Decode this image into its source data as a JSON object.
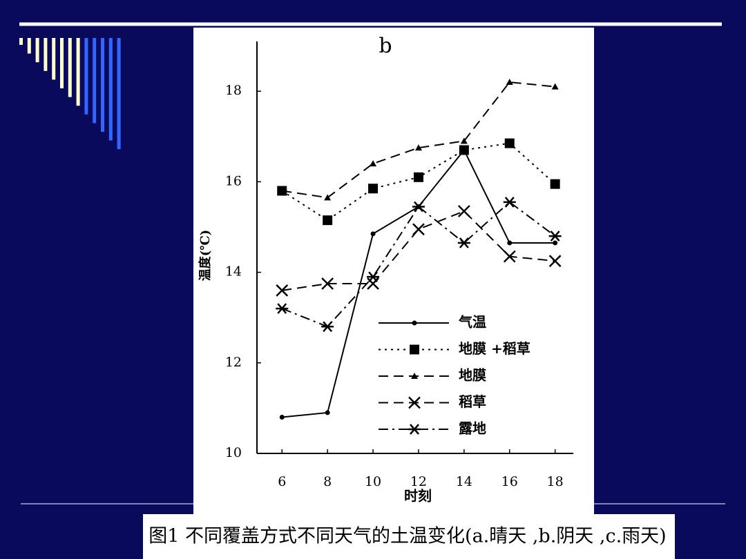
{
  "chart_data": {
    "type": "line",
    "title": "b",
    "ylabel": "温度(℃)",
    "xlabel": "时刻",
    "x": [
      6,
      8,
      10,
      12,
      14,
      16,
      18
    ],
    "xlim": [
      4.9,
      18.8
    ],
    "xticks": [
      6,
      8,
      10,
      12,
      14,
      16,
      18
    ],
    "ylim": [
      10,
      19.1
    ],
    "yticks": [
      10,
      12,
      14,
      16,
      18
    ],
    "series": [
      {
        "name": "气温",
        "color": "#000000",
        "marker": "dot",
        "line_style": "solid",
        "values": [
          10.8,
          10.9,
          14.85,
          15.45,
          16.7,
          14.65,
          14.65
        ]
      },
      {
        "name": "地膜 +稻草",
        "color": "#000000",
        "marker": "square",
        "line_style": "dotted",
        "values": [
          15.8,
          15.15,
          15.85,
          16.1,
          16.7,
          16.85,
          15.95
        ]
      },
      {
        "name": "地膜",
        "color": "#000000",
        "marker": "triangle",
        "line_style": "dashed",
        "values": [
          15.8,
          15.65,
          16.4,
          16.75,
          16.9,
          18.2,
          18.1
        ]
      },
      {
        "name": "稻草",
        "color": "#000000",
        "marker": "x",
        "line_style": "dashed",
        "values": [
          13.6,
          13.75,
          13.75,
          14.95,
          15.35,
          14.35,
          14.25
        ]
      },
      {
        "name": "露地",
        "color": "#000000",
        "marker": "star",
        "line_style": "dashdot",
        "values": [
          13.2,
          12.8,
          13.9,
          15.45,
          14.65,
          15.55,
          14.8
        ]
      }
    ]
  },
  "caption": "图1  不同覆盖方式不同天气的土温变化(a.晴天 ,b.阴天 ,c.雨天)"
}
